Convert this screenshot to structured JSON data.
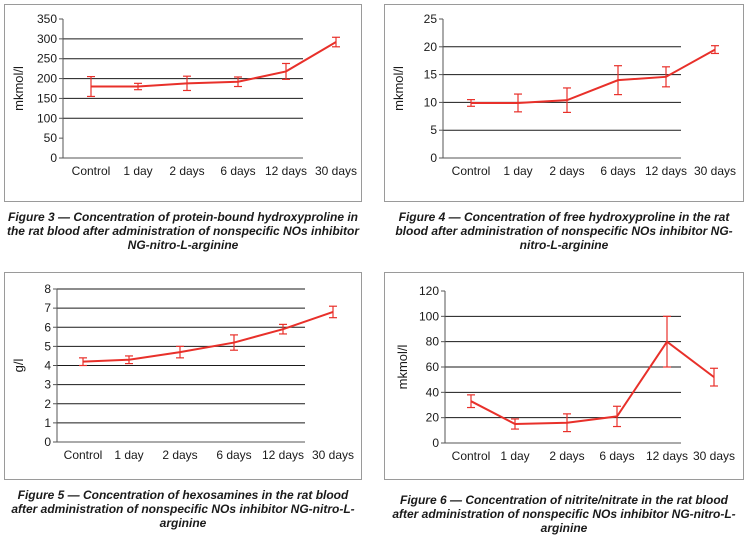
{
  "chart_data": [
    {
      "type": "line",
      "categories": [
        "Control",
        "1 day",
        "2 days",
        "6 days",
        "12 days",
        "30 days"
      ],
      "series": [
        {
          "values": [
            180,
            180,
            188,
            192,
            218,
            292
          ],
          "error": [
            25,
            8,
            18,
            12,
            20,
            12
          ]
        }
      ],
      "ylabel": "mkmol/l",
      "ylim": [
        0,
        350
      ],
      "yticks": [
        0,
        50,
        100,
        150,
        200,
        250,
        300,
        350
      ],
      "major_gridlines": [
        100,
        150,
        200,
        250,
        300
      ],
      "line_color": "#e8302a",
      "caption": "Figure 3 — Concentration of protein-bound hydroxyproline in the rat blood after administration of nonspecific NOs inhibitor NG-nitro-L-arginine"
    },
    {
      "type": "line",
      "categories": [
        "Control",
        "1 day",
        "2 days",
        "6 days",
        "12 days",
        "30 days"
      ],
      "series": [
        {
          "values": [
            9.9,
            9.9,
            10.4,
            14.0,
            14.6,
            19.5
          ],
          "error": [
            0.6,
            1.6,
            2.2,
            2.6,
            1.8,
            0.7
          ]
        }
      ],
      "ylabel": "mkmol/l",
      "ylim": [
        0,
        25
      ],
      "yticks": [
        0,
        5,
        10,
        15,
        20,
        25
      ],
      "major_gridlines": [
        5,
        10,
        15,
        20
      ],
      "line_color": "#e8302a",
      "caption": "Figure 4 — Concentration of free hydroxyproline in the rat blood after administration of nonspecific NOs inhibitor NG-nitro-L-arginine"
    },
    {
      "type": "line",
      "categories": [
        "Control",
        "1 day",
        "2 days",
        "6 days",
        "12 days",
        "30 days"
      ],
      "series": [
        {
          "values": [
            4.2,
            4.3,
            4.7,
            5.2,
            5.9,
            6.8
          ],
          "error": [
            0.2,
            0.2,
            0.3,
            0.4,
            0.25,
            0.3
          ]
        }
      ],
      "ylabel": "g/l",
      "ylim": [
        0,
        8
      ],
      "yticks": [
        0,
        1,
        2,
        3,
        4,
        5,
        6,
        7,
        8
      ],
      "major_gridlines": [
        1,
        2,
        3,
        4,
        5,
        6,
        7,
        8
      ],
      "line_color": "#e8302a",
      "caption": "Figure 5 — Concentration of hexosamines in the rat blood after administration of nonspecific NOs inhibitor NG-nitro-L-arginine"
    },
    {
      "type": "line",
      "categories": [
        "Control",
        "1 day",
        "2 days",
        "6 days",
        "12 days",
        "30 days"
      ],
      "series": [
        {
          "values": [
            33,
            15,
            16,
            21,
            80,
            52
          ],
          "error": [
            5,
            4,
            7,
            8,
            20,
            7
          ]
        }
      ],
      "ylabel": "mkmol/l",
      "ylim": [
        0,
        120
      ],
      "yticks": [
        0,
        20,
        40,
        60,
        80,
        100,
        120
      ],
      "major_gridlines": [
        20,
        40,
        60,
        80,
        100
      ],
      "line_color": "#e8302a",
      "caption": "Figure 6 — Concentration of nitrite/nitrate in the rat blood after administration of nonspecific NOs inhibitor NG-nitro-L-arginine"
    }
  ]
}
